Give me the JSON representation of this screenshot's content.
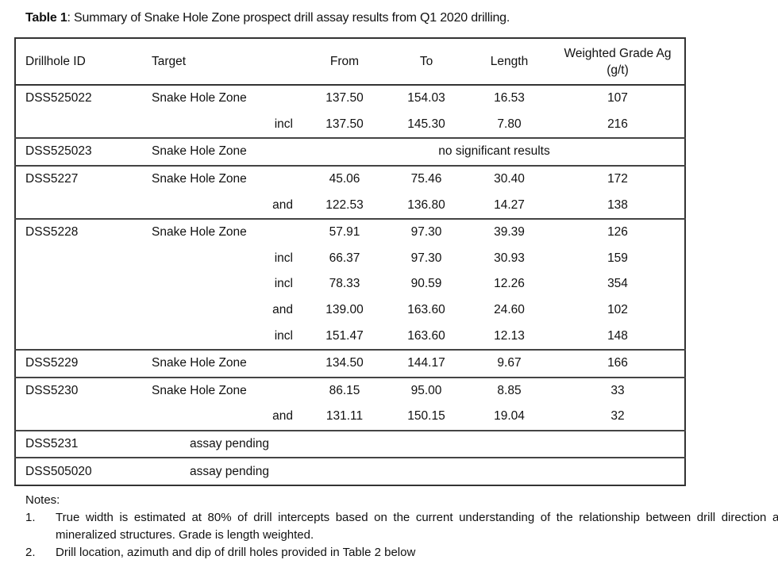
{
  "caption": {
    "label": "Table 1",
    "text": ": Summary of Snake Hole Zone prospect drill assay results from Q1 2020 drilling."
  },
  "headers": [
    "Drillhole ID",
    "Target",
    "From",
    "To",
    "Length",
    "Weighted Grade Ag (g/t)"
  ],
  "groups": [
    {
      "id": "DSS525022",
      "rows": [
        {
          "target": "Snake Hole Zone",
          "from": "137.50",
          "to": "154.03",
          "length": "16.53",
          "grade": "107"
        },
        {
          "qualifier": "incl",
          "from": "137.50",
          "to": "145.30",
          "length": "7.80",
          "grade": "216"
        }
      ]
    },
    {
      "id": "DSS525023",
      "rows": [
        {
          "target": "Snake Hole Zone",
          "note": "no significant results"
        }
      ]
    },
    {
      "id": "DSS5227",
      "rows": [
        {
          "target": "Snake Hole Zone",
          "from": "45.06",
          "to": "75.46",
          "length": "30.40",
          "grade": "172"
        },
        {
          "qualifier": "and",
          "from": "122.53",
          "to": "136.80",
          "length": "14.27",
          "grade": "138"
        }
      ]
    },
    {
      "id": "DSS5228",
      "rows": [
        {
          "target": "Snake Hole Zone",
          "from": "57.91",
          "to": "97.30",
          "length": "39.39",
          "grade": "126"
        },
        {
          "qualifier": "incl",
          "from": "66.37",
          "to": "97.30",
          "length": "30.93",
          "grade": "159"
        },
        {
          "qualifier": "incl",
          "from": "78.33",
          "to": "90.59",
          "length": "12.26",
          "grade": "354"
        },
        {
          "qualifier": "and",
          "from": "139.00",
          "to": "163.60",
          "length": "24.60",
          "grade": "102"
        },
        {
          "qualifier": "incl",
          "from": "151.47",
          "to": "163.60",
          "length": "12.13",
          "grade": "148"
        }
      ]
    },
    {
      "id": "DSS5229",
      "rows": [
        {
          "target": "Snake Hole Zone",
          "from": "134.50",
          "to": "144.17",
          "length": "9.67",
          "grade": "166"
        }
      ]
    },
    {
      "id": "DSS5230",
      "rows": [
        {
          "target": "Snake Hole Zone",
          "from": "86.15",
          "to": "95.00",
          "length": "8.85",
          "grade": "33"
        },
        {
          "qualifier": "and",
          "from": "131.11",
          "to": "150.15",
          "length": "19.04",
          "grade": "32"
        }
      ]
    },
    {
      "id": "DSS5231",
      "rows": [
        {
          "pending": "assay pending"
        }
      ]
    },
    {
      "id": "DSS505020",
      "rows": [
        {
          "pending": "assay pending"
        }
      ]
    }
  ],
  "notes": {
    "title": "Notes:",
    "items": [
      {
        "num": "1.",
        "text": "True width is estimated at 80% of drill intercepts based on the current understanding of the relationship between drill direction and mineralized structures. Grade is length weighted."
      },
      {
        "num": "2.",
        "text": "Drill location, azimuth and dip of drill holes provided in Table 2 below"
      }
    ]
  }
}
